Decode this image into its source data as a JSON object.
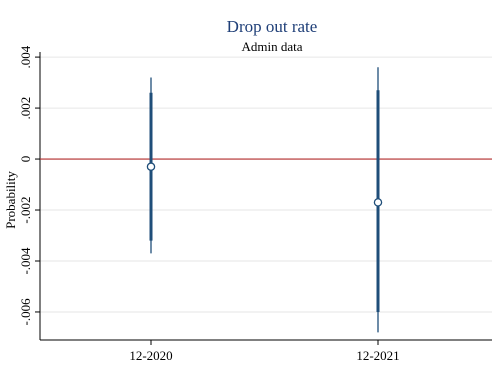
{
  "chart_data": {
    "type": "scatter",
    "title": "Drop out rate",
    "subtitle": "Admin data",
    "xlabel": "",
    "ylabel": "Probability",
    "categories": [
      "12-2020",
      "12-2021"
    ],
    "y_ticks": [
      ".004",
      ".002",
      "0",
      "-.002",
      "-.004",
      "-.006"
    ],
    "ylim": [
      -0.0071,
      0.0042
    ],
    "reference_line": 0,
    "grid": true,
    "series": [
      {
        "points": [
          {
            "category": "12-2020",
            "estimate": -0.0003,
            "ci_inner": [
              -0.0032,
              0.0026
            ],
            "ci_outer": [
              -0.0037,
              0.0032
            ]
          },
          {
            "category": "12-2021",
            "estimate": -0.0017,
            "ci_inner": [
              -0.006,
              0.0027
            ],
            "ci_outer": [
              -0.0068,
              0.0036
            ]
          }
        ]
      }
    ],
    "colors": {
      "title": "#1f3f78",
      "ci": "#1f4e79",
      "marker": "#1f4e79",
      "reference_line": "#b02a2a",
      "grid": "#e6e6e6",
      "axis": "#000000"
    }
  }
}
